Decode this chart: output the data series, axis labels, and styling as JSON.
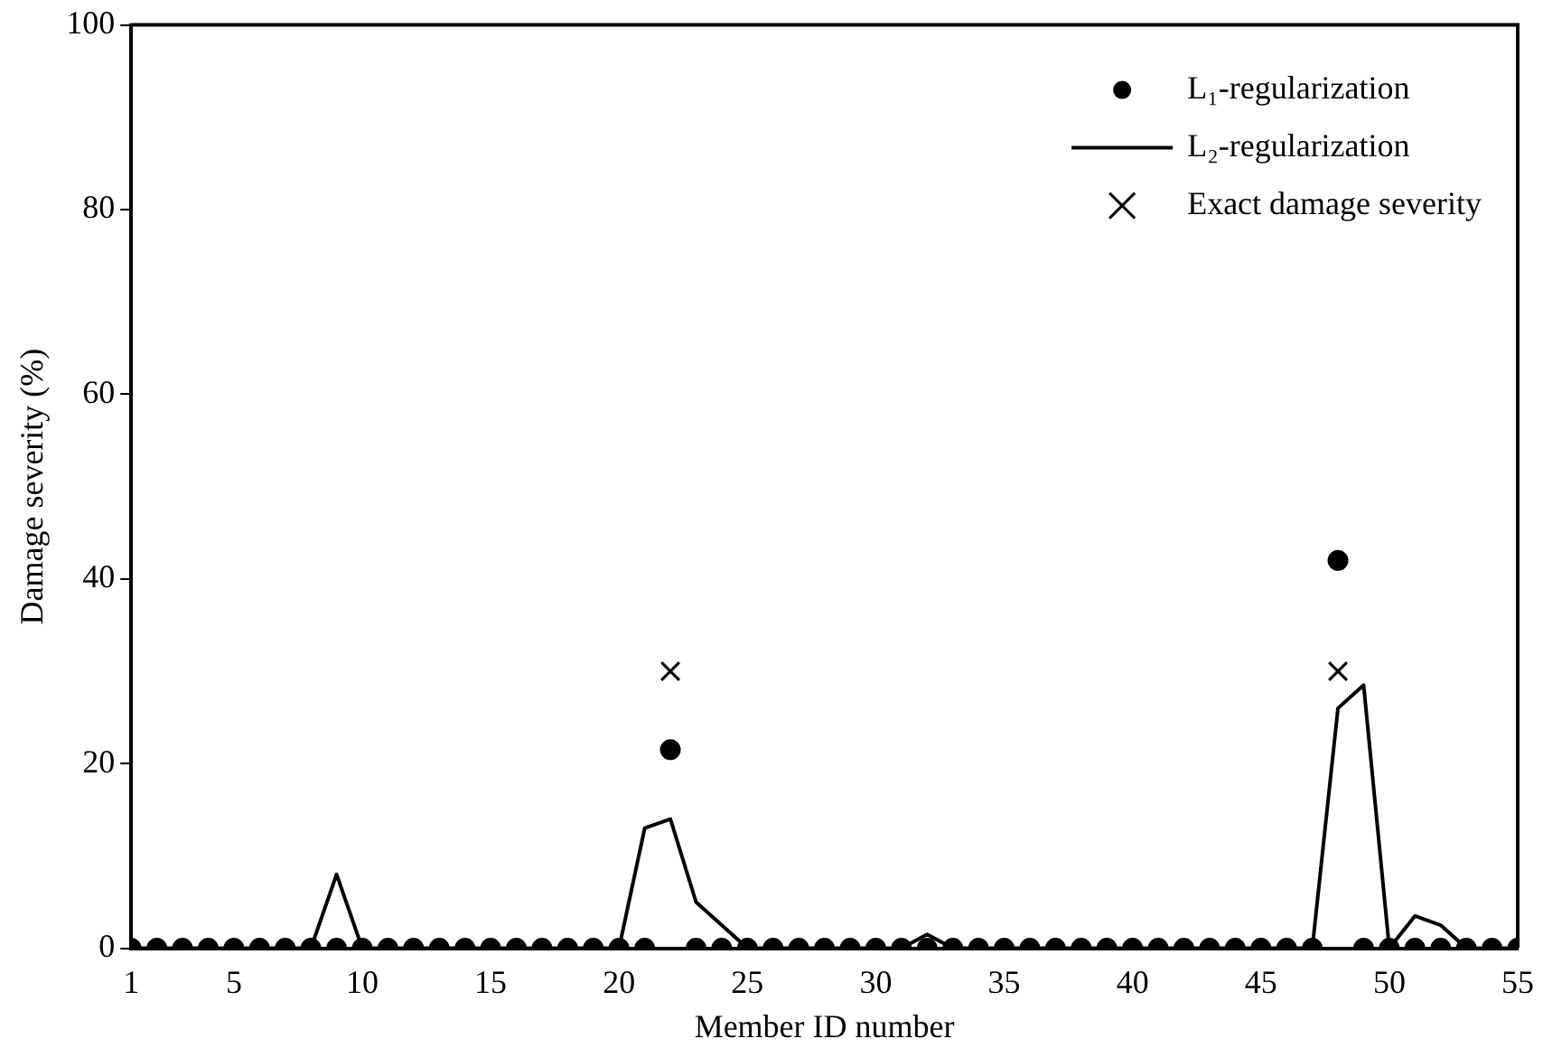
{
  "chart_data": {
    "type": "scatter",
    "xlabel": "Member ID number",
    "ylabel": "Damage severity (%)",
    "x": [
      1,
      2,
      3,
      4,
      5,
      6,
      7,
      8,
      9,
      10,
      11,
      12,
      13,
      14,
      15,
      16,
      17,
      18,
      19,
      20,
      21,
      22,
      23,
      24,
      25,
      26,
      27,
      28,
      29,
      30,
      31,
      32,
      33,
      34,
      35,
      36,
      37,
      38,
      39,
      40,
      41,
      42,
      43,
      44,
      45,
      46,
      47,
      48,
      49,
      50,
      51,
      52,
      53,
      54,
      55
    ],
    "xlim": [
      1,
      55
    ],
    "xticks": [
      1,
      5,
      10,
      15,
      20,
      25,
      30,
      35,
      40,
      45,
      50,
      55
    ],
    "ylim": [
      0,
      100
    ],
    "yticks": [
      0,
      20,
      40,
      60,
      80,
      100
    ],
    "grid": false,
    "legend": "top right",
    "series": [
      {
        "name": "L₁-regularization",
        "type": "scatter",
        "marker": "circle",
        "color": "#000000",
        "values": [
          0,
          0,
          0,
          0,
          0,
          0,
          0,
          0,
          0,
          0,
          0,
          0,
          0,
          0,
          0,
          0,
          0,
          0,
          0,
          0,
          0,
          21.5,
          0,
          0,
          0,
          0,
          0,
          0,
          0,
          0,
          0,
          0,
          0,
          0,
          0,
          0,
          0,
          0,
          0,
          0,
          0,
          0,
          0,
          0,
          0,
          0,
          0,
          42,
          0,
          0,
          0,
          0,
          0,
          0,
          0
        ]
      },
      {
        "name": "L₂-regularization",
        "type": "line",
        "marker": "none",
        "line_style": "solid",
        "color": "#000000",
        "values": [
          0,
          0,
          0,
          0,
          0,
          0,
          0,
          0,
          8,
          0,
          0,
          0,
          0,
          0,
          0,
          0,
          0,
          0,
          0,
          0,
          13,
          14,
          5,
          2.5,
          0,
          0,
          0,
          0,
          0,
          0,
          0,
          1.5,
          0,
          0,
          0,
          0,
          0,
          0,
          0,
          0,
          0,
          0,
          0,
          0,
          0,
          0,
          0,
          26,
          28.5,
          0,
          3.5,
          2.5,
          0,
          0,
          0
        ]
      },
      {
        "name": "Exact damage severity",
        "type": "scatter",
        "marker": "cross",
        "color": "#000000",
        "values": [
          null,
          null,
          null,
          null,
          null,
          null,
          null,
          null,
          null,
          null,
          null,
          null,
          null,
          null,
          null,
          null,
          null,
          null,
          null,
          null,
          null,
          30,
          null,
          null,
          null,
          null,
          null,
          null,
          null,
          null,
          null,
          null,
          null,
          null,
          null,
          null,
          null,
          null,
          null,
          null,
          null,
          null,
          null,
          null,
          null,
          null,
          null,
          30,
          null,
          null,
          null,
          null,
          null,
          null,
          null
        ]
      }
    ]
  }
}
